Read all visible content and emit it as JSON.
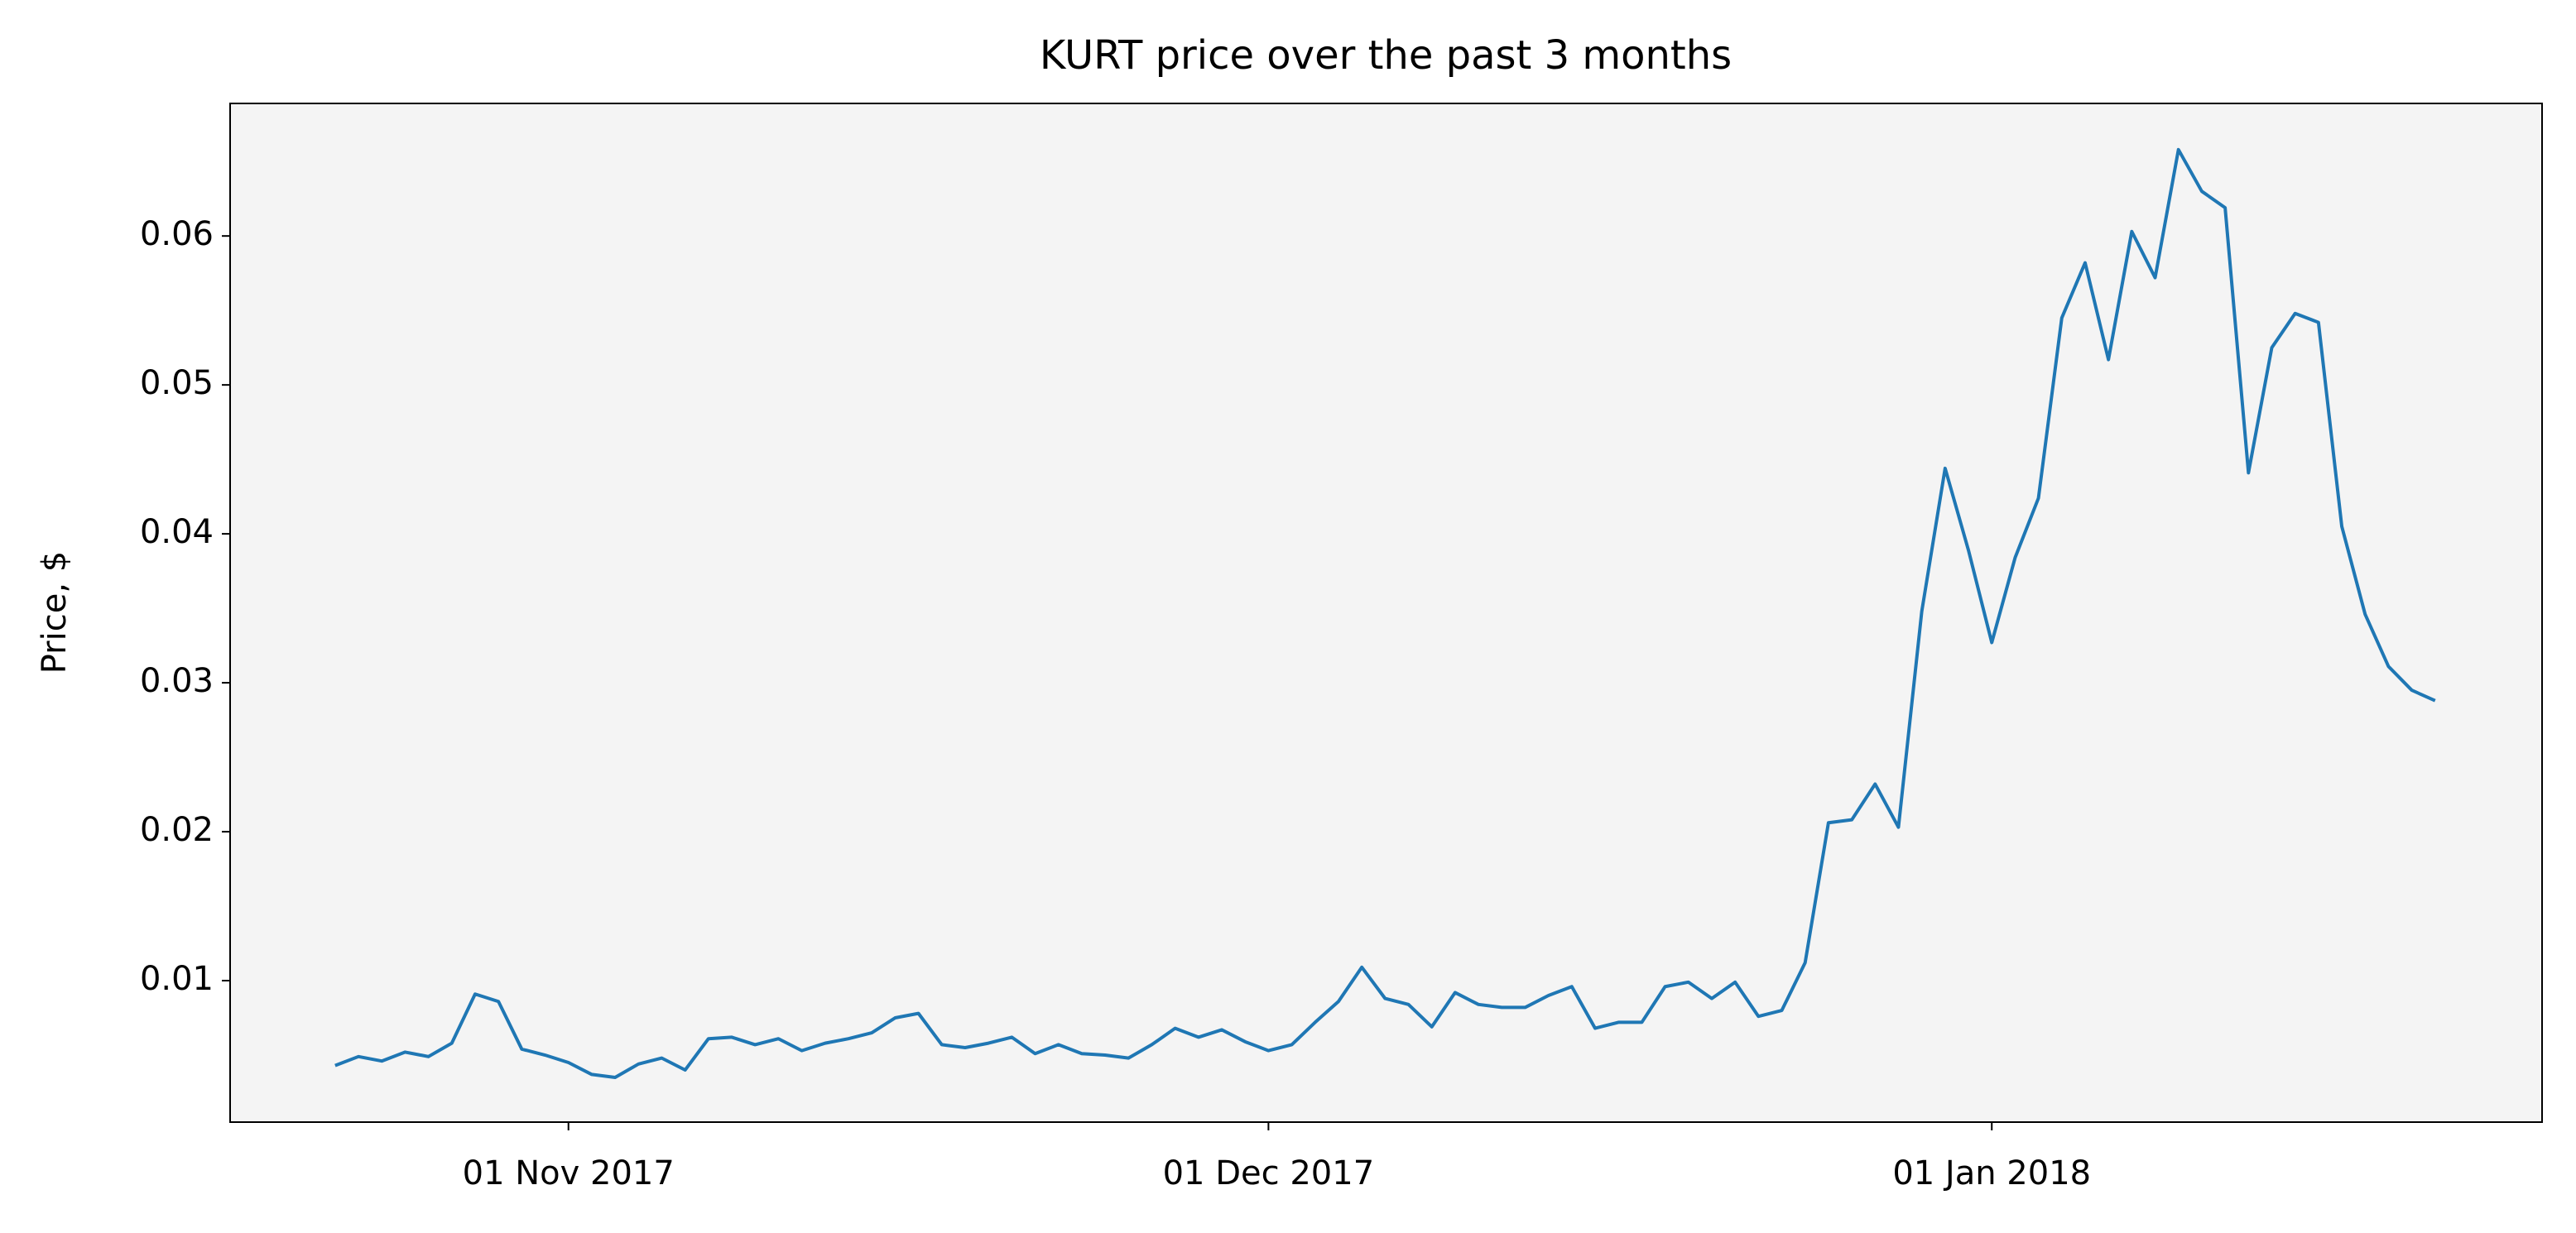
{
  "chart_data": {
    "type": "line",
    "title": "KURT price over the past 3 months",
    "y_label": "Price, $",
    "x": [
      "2017-10-22",
      "2017-10-23",
      "2017-10-24",
      "2017-10-25",
      "2017-10-26",
      "2017-10-27",
      "2017-10-28",
      "2017-10-29",
      "2017-10-30",
      "2017-10-31",
      "2017-11-01",
      "2017-11-02",
      "2017-11-03",
      "2017-11-04",
      "2017-11-05",
      "2017-11-06",
      "2017-11-07",
      "2017-11-08",
      "2017-11-09",
      "2017-11-10",
      "2017-11-11",
      "2017-11-12",
      "2017-11-13",
      "2017-11-14",
      "2017-11-15",
      "2017-11-16",
      "2017-11-17",
      "2017-11-18",
      "2017-11-19",
      "2017-11-20",
      "2017-11-21",
      "2017-11-22",
      "2017-11-23",
      "2017-11-24",
      "2017-11-25",
      "2017-11-26",
      "2017-11-27",
      "2017-11-28",
      "2017-11-29",
      "2017-11-30",
      "2017-12-01",
      "2017-12-02",
      "2017-12-03",
      "2017-12-04",
      "2017-12-05",
      "2017-12-06",
      "2017-12-07",
      "2017-12-08",
      "2017-12-09",
      "2017-12-10",
      "2017-12-11",
      "2017-12-12",
      "2017-12-13",
      "2017-12-14",
      "2017-12-15",
      "2017-12-16",
      "2017-12-17",
      "2017-12-18",
      "2017-12-19",
      "2017-12-20",
      "2017-12-21",
      "2017-12-22",
      "2017-12-23",
      "2017-12-24",
      "2017-12-25",
      "2017-12-26",
      "2017-12-27",
      "2017-12-28",
      "2017-12-29",
      "2017-12-30",
      "2017-12-31",
      "2018-01-01",
      "2018-01-02",
      "2018-01-03",
      "2018-01-04",
      "2018-01-05",
      "2018-01-06",
      "2018-01-07",
      "2018-01-08",
      "2018-01-09",
      "2018-01-10",
      "2018-01-11",
      "2018-01-12",
      "2018-01-13",
      "2018-01-14",
      "2018-01-15",
      "2018-01-16",
      "2018-01-17",
      "2018-01-18",
      "2018-01-19",
      "2018-01-20"
    ],
    "series": [
      {
        "name": "KURT",
        "color": "#1f77b4",
        "values": [
          0.0043,
          0.0049,
          0.0046,
          0.0052,
          0.0049,
          0.0058,
          0.0091,
          0.0086,
          0.0054,
          0.005,
          0.0045,
          0.0037,
          0.0035,
          0.0044,
          0.0048,
          0.004,
          0.0061,
          0.0062,
          0.0057,
          0.0061,
          0.0053,
          0.0058,
          0.0061,
          0.0065,
          0.0075,
          0.0078,
          0.0057,
          0.0055,
          0.0058,
          0.0062,
          0.0051,
          0.0057,
          0.0051,
          0.005,
          0.0048,
          0.0057,
          0.0068,
          0.0062,
          0.0067,
          0.0059,
          0.0053,
          0.0057,
          0.0072,
          0.0086,
          0.0109,
          0.0088,
          0.0084,
          0.0069,
          0.0092,
          0.0084,
          0.0082,
          0.0082,
          0.009,
          0.0096,
          0.0068,
          0.0072,
          0.0072,
          0.0096,
          0.0099,
          0.0088,
          0.0099,
          0.0076,
          0.008,
          0.0112,
          0.0206,
          0.0208,
          0.0232,
          0.0203,
          0.0348,
          0.0444,
          0.0389,
          0.0327,
          0.0384,
          0.0424,
          0.0545,
          0.0582,
          0.0517,
          0.0603,
          0.0572,
          0.0658,
          0.063,
          0.0619,
          0.0441,
          0.0525,
          0.0548,
          0.0542,
          0.0405,
          0.0346,
          0.0311,
          0.0295,
          0.0288
        ]
      }
    ],
    "xlim": [
      "2017-10-17T12:00",
      "2018-01-24T14:00"
    ],
    "xticks": [
      {
        "value": "2017-11-01",
        "label": "01 Nov 2017"
      },
      {
        "value": "2017-12-01",
        "label": "01 Dec 2017"
      },
      {
        "value": "2018-01-01",
        "label": "01 Jan 2018"
      }
    ],
    "ylim": [
      0.0005,
      0.0689
    ],
    "yticks": [
      0.01,
      0.02,
      0.03,
      0.04,
      0.05,
      0.06
    ],
    "grid": false
  }
}
